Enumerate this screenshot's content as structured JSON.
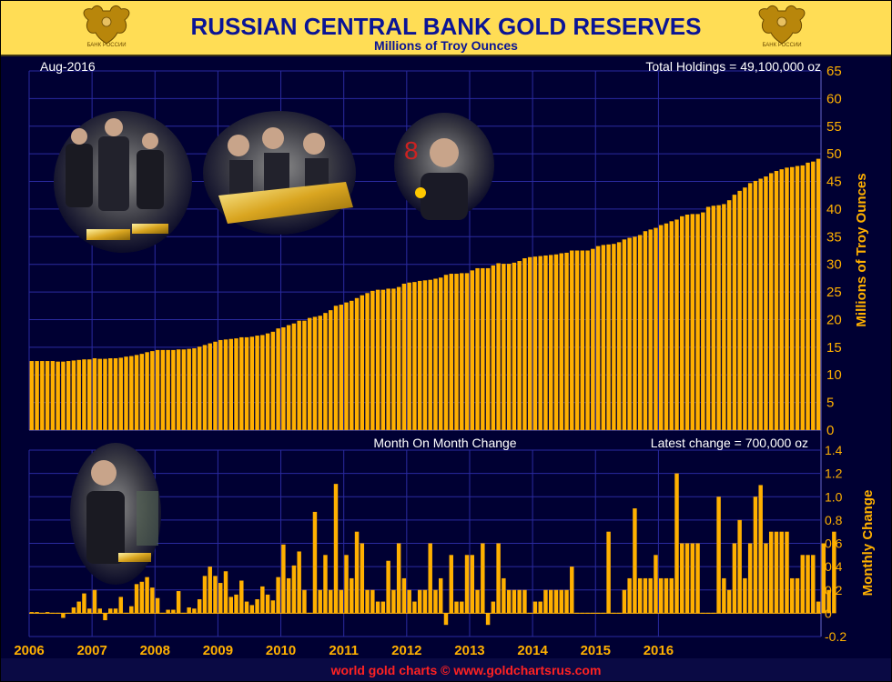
{
  "header": {
    "title": "RUSSIAN CENTRAL BANK GOLD RESERVES",
    "subtitle": "Millions of Troy Ounces",
    "emblem_label": "БАНК РОССИИ"
  },
  "footer": {
    "credit": "world gold charts © www.goldchartsrus.com"
  },
  "photos": [
    {
      "name": "gold-vault-photo-1"
    },
    {
      "name": "gold-bar-photo-2"
    },
    {
      "name": "gold-coin-photo-3"
    },
    {
      "name": "gold-bar-photo-4"
    }
  ],
  "colors": {
    "header_bg": "#FFDD55",
    "title": "#0A1496",
    "plot_bg": "#000033",
    "grid": "#2A2AA0",
    "bar": "#FFB000",
    "axis_text": "#FFB000",
    "panel_text": "#FFFFFF",
    "footer_bg": "#0A0A44",
    "footer_text": "#FF2222"
  },
  "chart_data": [
    {
      "type": "bar",
      "title": "RUSSIAN CENTRAL BANK GOLD RESERVES",
      "subtitle": "Millions of Troy Ounces",
      "ylabel": "Millions of Troy Ounces",
      "ylim": [
        0,
        65
      ],
      "yticks": [
        "0",
        "5",
        "10",
        "15",
        "20",
        "25",
        "30",
        "35",
        "40",
        "45",
        "50",
        "55",
        "60",
        "65"
      ],
      "xticks": [
        "2006",
        "2007",
        "2008",
        "2009",
        "2010",
        "2011",
        "2012",
        "2013",
        "2014",
        "2015",
        "2016"
      ],
      "start": "2006-01",
      "end": "2016-08",
      "annotation_left": "Aug-2016",
      "annotation_right": "Total Holdings = 49,100,000 oz",
      "grid": true,
      "series": [
        {
          "values": [
            12.5,
            12.5,
            12.5,
            12.5,
            12.5,
            12.4,
            12.4,
            12.5,
            12.6,
            12.7,
            12.8,
            12.8,
            13.0,
            12.9,
            12.9,
            13.0,
            13.0,
            13.1,
            13.3,
            13.4,
            13.6,
            13.8,
            14.1,
            14.3,
            14.5,
            14.5,
            14.5,
            14.5,
            14.6,
            14.6,
            14.7,
            14.8,
            15.1,
            15.4,
            15.7,
            16.0,
            16.3,
            16.4,
            16.5,
            16.6,
            16.8,
            16.8,
            16.9,
            17.1,
            17.2,
            17.5,
            17.8,
            18.4,
            18.6,
            19.0,
            19.3,
            19.8,
            19.8,
            20.3,
            20.5,
            20.7,
            21.2,
            21.7,
            22.5,
            22.7,
            23.1,
            23.4,
            23.9,
            24.4,
            24.8,
            25.2,
            25.4,
            25.4,
            25.6,
            25.6,
            25.9,
            26.5,
            26.7,
            26.8,
            27.0,
            27.1,
            27.2,
            27.4,
            27.6,
            28.1,
            28.3,
            28.3,
            28.4,
            28.4,
            28.9,
            29.3,
            29.3,
            29.3,
            29.8,
            30.2,
            30.1,
            30.1,
            30.3,
            30.6,
            31.1,
            31.3,
            31.4,
            31.5,
            31.6,
            31.7,
            31.8,
            32.0,
            32.1,
            32.5,
            32.5,
            32.5,
            32.5,
            32.8,
            33.3,
            33.5,
            33.6,
            33.7,
            34.0,
            34.5,
            34.8,
            35.0,
            35.3,
            36.0,
            36.3,
            36.6,
            37.1,
            37.4,
            37.8,
            38.1,
            38.7,
            39.0,
            39.1,
            39.1,
            39.4,
            40.4,
            40.6,
            40.7,
            40.9,
            41.6,
            42.6,
            43.3,
            43.9,
            44.7,
            45.1,
            45.5,
            45.9,
            46.5,
            46.9,
            47.2,
            47.5,
            47.6,
            47.8,
            47.9,
            48.4,
            48.6,
            49.1
          ]
        }
      ]
    },
    {
      "type": "bar",
      "ylabel": "Monthly Change",
      "ylim": [
        -0.2,
        1.4
      ],
      "yticks": [
        "-0.2",
        "0",
        "0.2",
        "0.4",
        "0.6",
        "0.8",
        "1.0",
        "1.2",
        "1.4"
      ],
      "annotation_center": "Month On Month Change",
      "annotation_right": "Latest change = 700,000 oz",
      "grid": true,
      "series": [
        {
          "values": [
            0.01,
            0.01,
            0,
            0.01,
            0,
            0,
            -0.04,
            0,
            0.05,
            0.1,
            0.17,
            0.04,
            0.2,
            0.04,
            -0.06,
            0.04,
            0.04,
            0.14,
            0,
            0.06,
            0.25,
            0.27,
            0.31,
            0.22,
            0.13,
            0,
            0.03,
            0.03,
            0.19,
            0,
            0.05,
            0.04,
            0.12,
            0.32,
            0.4,
            0.32,
            0.26,
            0.36,
            0.14,
            0.16,
            0.28,
            0.1,
            0.07,
            0.12,
            0.23,
            0.16,
            0.11,
            0.31,
            0.59,
            0.3,
            0.41,
            0.53,
            0.2,
            0,
            0.87,
            0.2,
            0.5,
            0.2,
            1.11,
            0.2,
            0.5,
            0.3,
            0.7,
            0.6,
            0.2,
            0.2,
            0.1,
            0.1,
            0.45,
            0.2,
            0.6,
            0.3,
            0.2,
            0.1,
            0.2,
            0.2,
            0.6,
            0.2,
            0.3,
            -0.1,
            0.5,
            0.1,
            0.1,
            0.5,
            0.5,
            0.2,
            0.6,
            -0.1,
            0.1,
            0.6,
            0.3,
            0.2,
            0.2,
            0.2,
            0.2,
            0,
            0.1,
            0.1,
            0.2,
            0.2,
            0.2,
            0.2,
            0.2,
            0.4,
            0,
            0,
            0,
            0,
            0,
            0,
            0.7,
            0,
            0,
            0.2,
            0.3,
            0.9,
            0.3,
            0.3,
            0.3,
            0.5,
            0.3,
            0.3,
            0.3,
            1.2,
            0.6,
            0.6,
            0.6,
            0.6,
            0,
            0,
            0,
            1.0,
            0.3,
            0.2,
            0.6,
            0.8,
            0.3,
            0.6,
            1.0,
            1.1,
            0.6,
            0.7,
            0.7,
            0.7,
            0.7,
            0.3,
            0.3,
            0.5,
            0.5,
            0.5,
            0.1,
            0.6,
            0.2,
            0.7
          ]
        }
      ]
    }
  ]
}
